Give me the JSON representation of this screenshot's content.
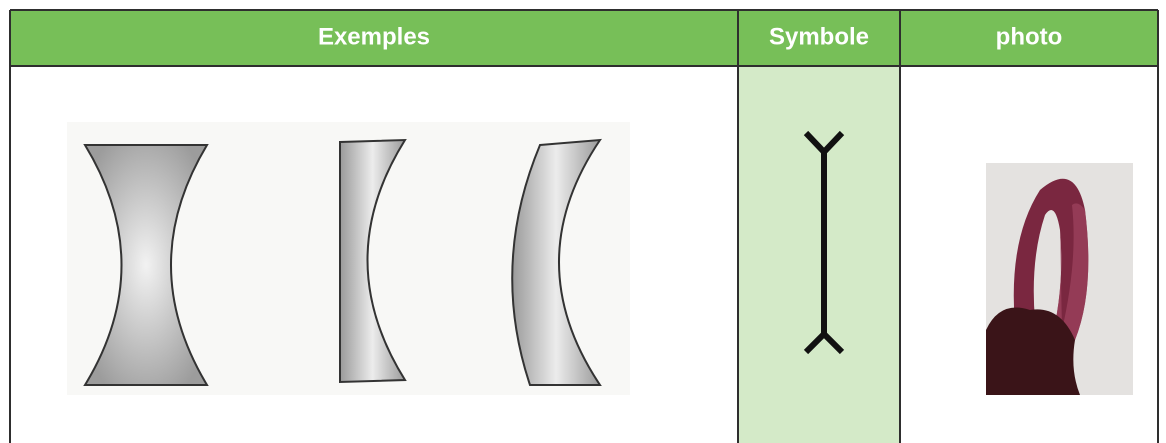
{
  "table": {
    "headers": [
      "Exemples",
      "Symbole",
      "photo"
    ]
  }
}
